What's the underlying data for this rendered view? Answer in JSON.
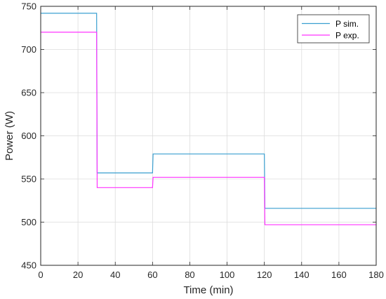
{
  "chart_data": {
    "type": "line",
    "title": "",
    "xlabel": "Time (min)",
    "ylabel": "Power (W)",
    "xlim": [
      0,
      180
    ],
    "ylim": [
      450,
      750
    ],
    "xticks": [
      0,
      20,
      40,
      60,
      80,
      100,
      120,
      140,
      160,
      180
    ],
    "yticks": [
      450,
      500,
      550,
      600,
      650,
      700,
      750
    ],
    "grid": true,
    "legend_position": "top-right",
    "series": [
      {
        "name": "P sim.",
        "color": "#3a9fd0",
        "x": [
          0,
          30,
          30.3,
          60,
          60.3,
          120,
          120.3,
          180
        ],
        "y": [
          742,
          742,
          557,
          557,
          579,
          579,
          516,
          516
        ]
      },
      {
        "name": "P exp.",
        "color": "#ff33ff",
        "x": [
          0,
          30,
          30.3,
          60,
          60.3,
          120,
          120.3,
          180
        ],
        "y": [
          720,
          720,
          540,
          540,
          552,
          552,
          497,
          497
        ]
      }
    ]
  }
}
